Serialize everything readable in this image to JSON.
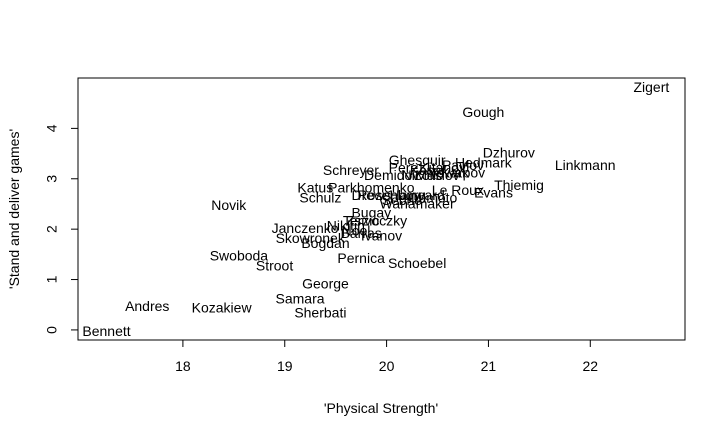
{
  "chart_data": {
    "type": "scatter",
    "title": "",
    "xlabel": "'Physical Strength'",
    "ylabel": "'Stand and deliver games'",
    "xlim": [
      16.97,
      22.93
    ],
    "ylim": [
      -0.2,
      5.0
    ],
    "xticks": [
      18,
      19,
      20,
      21,
      22
    ],
    "yticks": [
      0,
      1,
      2,
      3,
      4
    ],
    "grid": false,
    "legend": "none",
    "points": [
      {
        "label": "Zigert",
        "x": 22.6,
        "y": 4.8
      },
      {
        "label": "Gough",
        "x": 20.95,
        "y": 4.3
      },
      {
        "label": "Dzhurov",
        "x": 21.2,
        "y": 3.5
      },
      {
        "label": "Linkmann",
        "x": 21.95,
        "y": 3.25
      },
      {
        "label": "Ghesquir",
        "x": 20.3,
        "y": 3.35
      },
      {
        "label": "Hedmark",
        "x": 20.95,
        "y": 3.3
      },
      {
        "label": "Pavlov",
        "x": 20.75,
        "y": 3.25
      },
      {
        "label": "Perez",
        "x": 20.2,
        "y": 3.2
      },
      {
        "label": "Kitanov",
        "x": 20.55,
        "y": 3.2
      },
      {
        "label": "Kasal",
        "x": 20.4,
        "y": 3.15
      },
      {
        "label": "Karpov",
        "x": 20.75,
        "y": 3.1
      },
      {
        "label": "Nowak",
        "x": 20.6,
        "y": 3.1
      },
      {
        "label": "Schreyer",
        "x": 19.65,
        "y": 3.15
      },
      {
        "label": "Demidov",
        "x": 20.05,
        "y": 3.05
      },
      {
        "label": "Nicolic",
        "x": 20.35,
        "y": 3.05
      },
      {
        "label": "Maslov",
        "x": 20.5,
        "y": 3.05
      },
      {
        "label": "Thiemig",
        "x": 21.3,
        "y": 2.85
      },
      {
        "label": "Evans",
        "x": 21.05,
        "y": 2.7
      },
      {
        "label": "Katus",
        "x": 19.3,
        "y": 2.8
      },
      {
        "label": "Parkhomenko",
        "x": 19.85,
        "y": 2.8
      },
      {
        "label": "Le Roux",
        "x": 20.7,
        "y": 2.75
      },
      {
        "label": "Schulz",
        "x": 19.35,
        "y": 2.6
      },
      {
        "label": "Drews",
        "x": 19.85,
        "y": 2.65
      },
      {
        "label": "Rosenberg",
        "x": 20.05,
        "y": 2.65
      },
      {
        "label": "Hayward",
        "x": 20.3,
        "y": 2.65
      },
      {
        "label": "Ohmoto",
        "x": 20.45,
        "y": 2.6
      },
      {
        "label": "Sebrle",
        "x": 20.15,
        "y": 2.55
      },
      {
        "label": "Wanamaker",
        "x": 20.3,
        "y": 2.48
      },
      {
        "label": "Novik",
        "x": 18.45,
        "y": 2.45
      },
      {
        "label": "Bugay",
        "x": 19.85,
        "y": 2.3
      },
      {
        "label": "Terzic",
        "x": 19.75,
        "y": 2.15
      },
      {
        "label": "Zsivoczky",
        "x": 19.9,
        "y": 2.15
      },
      {
        "label": "Nikitin",
        "x": 19.6,
        "y": 2.05
      },
      {
        "label": "Janczenko",
        "x": 19.2,
        "y": 2.0
      },
      {
        "label": "Nool",
        "x": 19.7,
        "y": 1.95
      },
      {
        "label": "Barras",
        "x": 19.75,
        "y": 1.9
      },
      {
        "label": "Ivanov",
        "x": 19.95,
        "y": 1.85
      },
      {
        "label": "Skowronek",
        "x": 19.25,
        "y": 1.8
      },
      {
        "label": "Bogdan",
        "x": 19.4,
        "y": 1.7
      },
      {
        "label": "Swoboda",
        "x": 18.55,
        "y": 1.45
      },
      {
        "label": "Pernica",
        "x": 19.75,
        "y": 1.4
      },
      {
        "label": "Schoebel",
        "x": 20.3,
        "y": 1.3
      },
      {
        "label": "Stroot",
        "x": 18.9,
        "y": 1.25
      },
      {
        "label": "George",
        "x": 19.4,
        "y": 0.9
      },
      {
        "label": "Samara",
        "x": 19.15,
        "y": 0.6
      },
      {
        "label": "Andres",
        "x": 17.65,
        "y": 0.45
      },
      {
        "label": "Kozakiew",
        "x": 18.38,
        "y": 0.42
      },
      {
        "label": "Sherbati",
        "x": 19.35,
        "y": 0.32
      },
      {
        "label": "Bennett",
        "x": 17.25,
        "y": -0.05
      }
    ]
  }
}
